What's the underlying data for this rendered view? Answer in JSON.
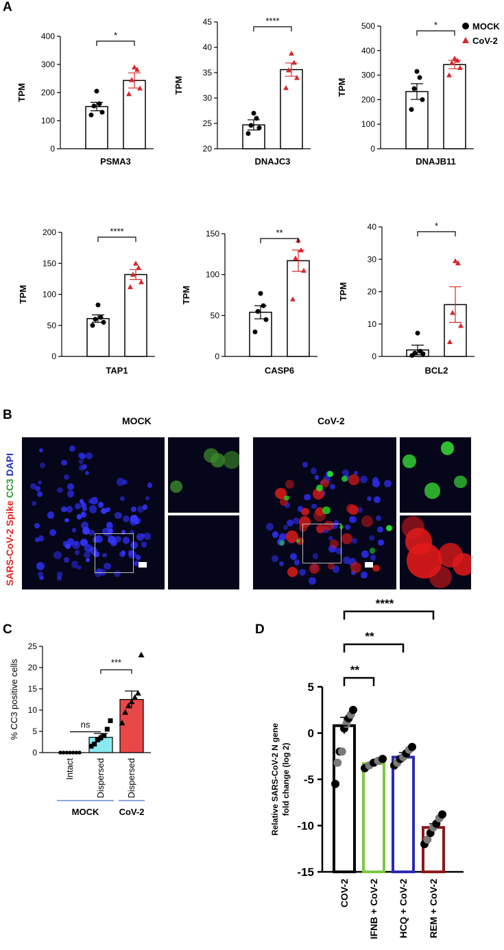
{
  "panel_letters": {
    "a": "A",
    "b": "B",
    "c": "C",
    "d": "D"
  },
  "legend": [
    {
      "label": "MOCK",
      "color": "#000000",
      "shape": "circle"
    },
    {
      "label": "CoV-2",
      "color": "#d62728",
      "shape": "triangle"
    }
  ],
  "colors": {
    "mock": "#000000",
    "cov": "#d62728",
    "cyan": "#8ae8f0",
    "red_bar": "#e84848",
    "green": "#7ac943",
    "blue": "#2b2bb0",
    "darkred": "#8b1a1a",
    "grey_point": "#7a7a7a"
  },
  "chart_data": [
    {
      "type": "bar",
      "panel": "A",
      "gene": "PSMA3",
      "ylabel": "TPM",
      "ylim": [
        0,
        400
      ],
      "yticks": [
        0,
        100,
        200,
        300,
        400
      ],
      "categories": [
        "MOCK",
        "CoV-2"
      ],
      "values": [
        150,
        243
      ],
      "sem": [
        15,
        27
      ],
      "points": [
        [
          120,
          130,
          152,
          160,
          205
        ],
        [
          195,
          215,
          245,
          282,
          290
        ]
      ],
      "significance": "*"
    },
    {
      "type": "bar",
      "panel": "A",
      "gene": "DNAJC3",
      "ylabel": "TPM",
      "ylim": [
        20,
        45
      ],
      "yticks": [
        20,
        25,
        30,
        35,
        40,
        45
      ],
      "categories": [
        "MOCK",
        "CoV-2"
      ],
      "values": [
        24.7,
        35.6
      ],
      "sem": [
        1,
        1.3
      ],
      "points": [
        [
          23,
          24.1,
          24.6,
          26,
          27
        ],
        [
          32,
          34,
          35.5,
          37,
          38.8
        ]
      ],
      "significance": "****"
    },
    {
      "type": "bar",
      "panel": "A",
      "gene": "DNAJB11",
      "ylabel": "TPM",
      "ylim": [
        0,
        500
      ],
      "yticks": [
        0,
        100,
        200,
        300,
        400,
        500
      ],
      "categories": [
        "MOCK",
        "CoV-2"
      ],
      "values": [
        233,
        343
      ],
      "sem": [
        32,
        17
      ],
      "points": [
        [
          160,
          200,
          245,
          290,
          315
        ],
        [
          300,
          330,
          350,
          360,
          368
        ]
      ],
      "significance": "*"
    },
    {
      "type": "bar",
      "panel": "A",
      "gene": "TAP1",
      "ylabel": "TPM",
      "ylim": [
        0,
        200
      ],
      "yticks": [
        0,
        50,
        100,
        150,
        200
      ],
      "categories": [
        "MOCK",
        "CoV-2"
      ],
      "values": [
        61,
        132
      ],
      "sem": [
        6,
        8
      ],
      "points": [
        [
          50,
          55,
          60,
          63,
          83
        ],
        [
          112,
          120,
          132,
          143,
          150
        ]
      ],
      "significance": "****"
    },
    {
      "type": "bar",
      "panel": "A",
      "gene": "CASP6",
      "ylabel": "TPM",
      "ylim": [
        0,
        150
      ],
      "yticks": [
        0,
        50,
        100,
        150
      ],
      "categories": [
        "MOCK",
        "CoV-2"
      ],
      "values": [
        54,
        117
      ],
      "sem": [
        8,
        13
      ],
      "points": [
        [
          30,
          45,
          55,
          62,
          77
        ],
        [
          70,
          105,
          120,
          130,
          142
        ]
      ],
      "significance": "**"
    },
    {
      "type": "bar",
      "panel": "A",
      "gene": "BCL2",
      "ylabel": "TPM",
      "ylim": [
        0,
        40
      ],
      "yticks": [
        0,
        10,
        20,
        30,
        40
      ],
      "categories": [
        "MOCK",
        "CoV-2"
      ],
      "values": [
        2,
        16
      ],
      "sem": [
        1.5,
        5.5
      ],
      "points": [
        [
          0.3,
          0.8,
          1,
          1.6,
          7.2
        ],
        [
          4.5,
          9.5,
          13.5,
          28.8,
          29.5
        ]
      ],
      "significance": "*"
    },
    {
      "type": "bar",
      "panel": "C",
      "ylabel": "% CC3 positive cells",
      "ylim": [
        0,
        25
      ],
      "yticks": [
        0,
        5,
        10,
        15,
        20,
        25
      ],
      "categories": [
        "Intact",
        "Dispersed",
        "Dispersed"
      ],
      "groups": [
        {
          "label": "MOCK",
          "span": [
            0,
            1
          ]
        },
        {
          "label": "CoV-2",
          "span": [
            2,
            2
          ]
        }
      ],
      "values": [
        0,
        3.6,
        12.5
      ],
      "sem": [
        0,
        0.9,
        2
      ],
      "points": [
        [
          0,
          0,
          0,
          0,
          0,
          0,
          0
        ],
        [
          1.5,
          2,
          3,
          3.5,
          4,
          5.5,
          7.5
        ],
        [
          7,
          9.5,
          11,
          12,
          13,
          14,
          23
        ]
      ],
      "comparisons": [
        {
          "from": 0,
          "to": 1,
          "label": "ns"
        },
        {
          "from": 1,
          "to": 2,
          "label": "***"
        }
      ]
    },
    {
      "type": "bar",
      "panel": "D",
      "ylabel": "Relative SARS-CoV-2 N gene fold change  (log 2)",
      "ylim": [
        -15,
        5
      ],
      "yticks": [
        -15,
        -10,
        -5,
        0,
        5
      ],
      "categories": [
        "COV-2",
        "IFNB + CoV-2",
        "HCQ + CoV-2",
        "REM + CoV-2"
      ],
      "values": [
        0.8,
        -3.3,
        -2.6,
        -10.2
      ],
      "sem": [
        0.9,
        0.2,
        0.5,
        0.4
      ],
      "points": [
        [
          -5.5,
          -3.2,
          -2,
          -2,
          0.5,
          1,
          1.6,
          2,
          2.5
        ],
        [
          -3.8,
          -3.5,
          -3.2,
          -3,
          -2.8
        ],
        [
          -3.5,
          -3.2,
          -2.8,
          -2.6,
          -2.2,
          -1.8,
          -1.5
        ],
        [
          -12,
          -11.5,
          -10.8,
          -10.2,
          -9.8,
          -9.2,
          -8.8
        ]
      ],
      "comparisons": [
        {
          "from": 0,
          "to": 1,
          "label": "**"
        },
        {
          "from": 0,
          "to": 2,
          "label": "**"
        },
        {
          "from": 0,
          "to": 3,
          "label": "****"
        }
      ]
    }
  ],
  "microscopy": {
    "mock_title": "MOCK",
    "cov_title": "CoV-2",
    "stain_label": {
      "part1": "SARS-CoV-2 Spike",
      "part2": " CC3",
      "part3": " DAPI"
    }
  }
}
